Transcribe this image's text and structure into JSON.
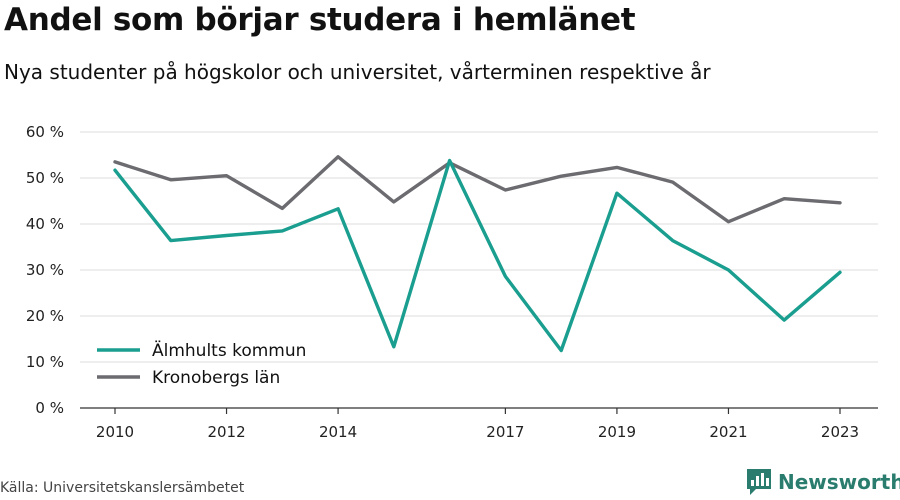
{
  "title": "Andel som börjar studera i hemlänet",
  "subtitle": "Nya studenter på högskolor och universitet, vårterminen respektive år",
  "source": "Källa: Universitetskanslersämbetet",
  "brand": "Newsworthy",
  "chart_data": {
    "type": "line",
    "x": [
      2010,
      2011,
      2012,
      2013,
      2014,
      2015,
      2016,
      2017,
      2018,
      2019,
      2020,
      2021,
      2022,
      2023
    ],
    "x_tick_labels": [
      "2010",
      "2012",
      "2014",
      "2017",
      "2019",
      "2021",
      "2023"
    ],
    "y_tick_labels": [
      "0 %",
      "10 %",
      "20 %",
      "30 %",
      "40 %",
      "50 %",
      "60 %"
    ],
    "ylim": [
      0,
      60
    ],
    "grid": true,
    "legend_position": "bottom-left",
    "series": [
      {
        "name": "Älmhults kommun",
        "color": "#1a9e8f",
        "values": [
          51.7,
          36.4,
          37.5,
          38.5,
          43.3,
          13.3,
          53.8,
          28.6,
          12.5,
          46.7,
          36.4,
          30.0,
          19.1,
          29.5
        ]
      },
      {
        "name": "Kronobergs län",
        "color": "#6b6b70",
        "values": [
          53.5,
          49.6,
          50.5,
          43.4,
          54.6,
          44.8,
          53.3,
          47.4,
          50.4,
          52.3,
          49.1,
          40.5,
          45.5,
          44.6
        ]
      }
    ]
  }
}
